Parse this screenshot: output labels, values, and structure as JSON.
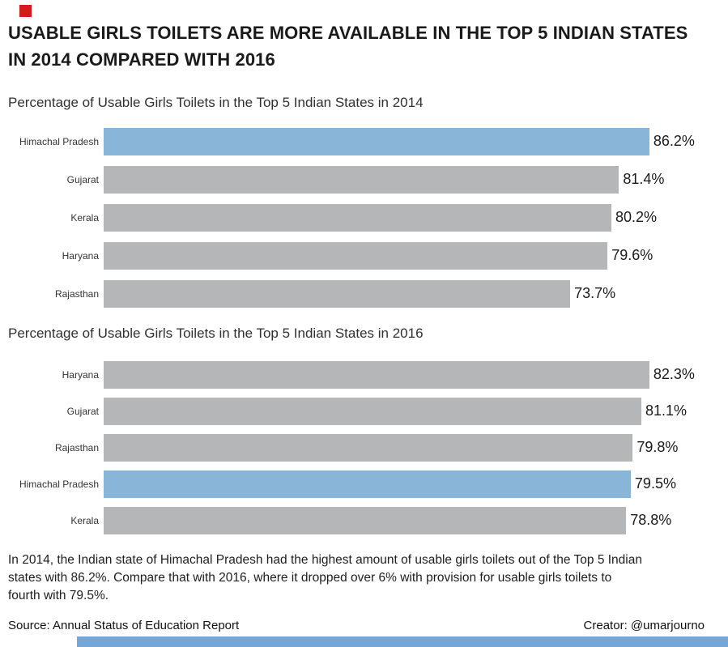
{
  "page": {
    "title_lines": [
      "USABLE GIRLS TOILETS ARE MORE AVAILABLE IN THE TOP 5 INDIAN STATES",
      "IN 2014 COMPARED WITH 2016"
    ],
    "caption_lines": [
      "In 2014, the Indian state of Himachal Pradesh had the highest amount of usable girls toilets out of the Top 5 Indian",
      "states with 86.2%. Compare that with 2016, where it dropped over 6% with provision for usable girls toilets to",
      "fourth with 79.5%."
    ],
    "source": "Source: Annual Status of Education Report",
    "creator": "Creator: @umarjourno"
  },
  "colors": {
    "bar_gray": "#b4b6b8",
    "bar_highlight_blue": "#89b5d9",
    "red_mark": "#d41b1b",
    "bottom_bar_blue": "#74a7d8"
  },
  "chart_data": [
    {
      "type": "bar",
      "orientation": "horizontal",
      "title": "Percentage of Usable Girls Toilets in the Top 5 Indian States in 2014",
      "categories": [
        "Himachal Pradesh",
        "Gujarat",
        "Kerala",
        "Haryana",
        "Rajasthan"
      ],
      "values": [
        86.2,
        81.4,
        80.2,
        79.6,
        73.7
      ],
      "value_labels": [
        "86.2%",
        "81.4%",
        "80.2%",
        "79.6%",
        "73.7%"
      ],
      "highlight_index": 0,
      "legend": "none",
      "grid": "off"
    },
    {
      "type": "bar",
      "orientation": "horizontal",
      "title": "Percentage of Usable Girls Toilets in the Top 5 Indian States in 2016",
      "categories": [
        "Haryana",
        "Gujarat",
        "Rajasthan",
        "Himachal Pradesh",
        "Kerala"
      ],
      "values": [
        82.3,
        81.1,
        79.8,
        79.5,
        78.8
      ],
      "value_labels": [
        "82.3%",
        "81.1%",
        "79.8%",
        "79.5%",
        "78.8%"
      ],
      "highlight_index": 3,
      "legend": "none",
      "grid": "off"
    }
  ]
}
